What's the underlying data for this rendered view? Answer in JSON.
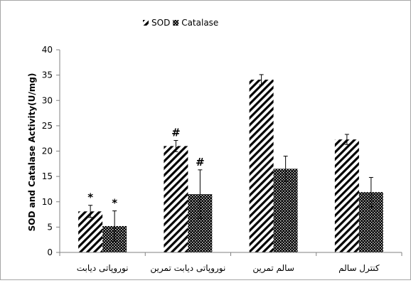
{
  "chart_data": {
    "type": "bar",
    "title": "",
    "xlabel": "",
    "ylabel": "SOD and Catalase  Activity(U/mg)",
    "ylim": [
      0,
      40
    ],
    "yticks": [
      0,
      5,
      10,
      15,
      20,
      25,
      30,
      35,
      40
    ],
    "grid": false,
    "legend_position": "top-center",
    "categories": [
      "نوروپاتی دیابت",
      "نوروپاتی دیابت تمرین",
      "سالم تمرین",
      "کنترل سالم"
    ],
    "series": [
      {
        "name": "SOD",
        "pattern": "diagonal-hatch",
        "values": [
          8.1,
          21.0,
          34.1,
          22.3
        ],
        "errors": [
          1.2,
          1.1,
          1.0,
          1.0
        ],
        "annotations": [
          "*",
          "#",
          "",
          ""
        ]
      },
      {
        "name": "Catalase",
        "pattern": "checker",
        "values": [
          5.2,
          11.5,
          16.5,
          11.9
        ],
        "errors": [
          3.0,
          4.8,
          2.5,
          2.9
        ],
        "annotations": [
          "*",
          "#",
          "",
          ""
        ]
      }
    ],
    "colors": {
      "ink": "#000000",
      "axis": "#808080",
      "frame": "#a6a6a6"
    }
  }
}
